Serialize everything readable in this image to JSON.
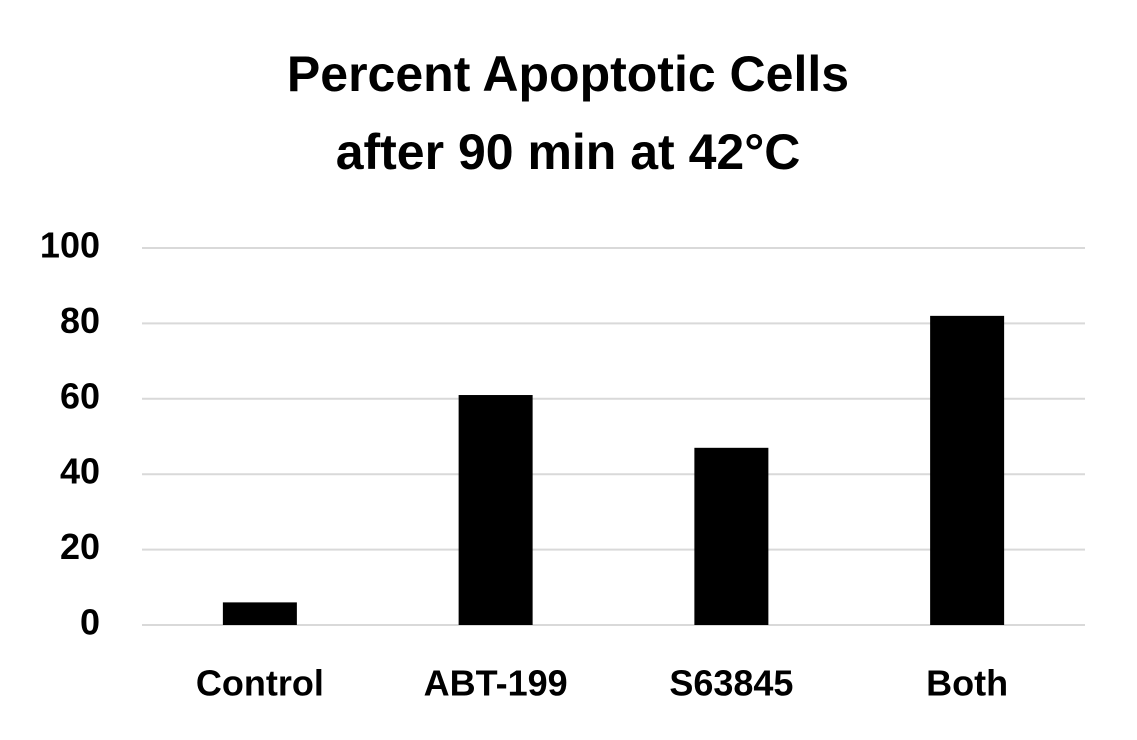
{
  "chart_data": {
    "type": "bar",
    "title": [
      "Percent Apoptotic Cells",
      "after 90 min at 42°C"
    ],
    "categories": [
      "Control",
      "ABT-199",
      "S63845",
      "Both"
    ],
    "values": [
      6,
      61,
      47,
      82
    ],
    "color": "#000000",
    "ylim": [
      0,
      100
    ],
    "yticks": [
      0,
      20,
      40,
      60,
      80,
      100
    ],
    "grid": true
  }
}
